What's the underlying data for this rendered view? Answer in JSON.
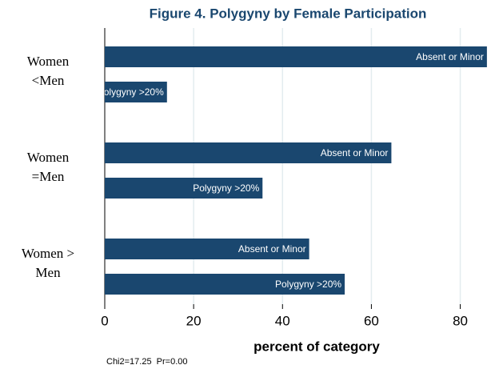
{
  "chart_data": {
    "type": "bar",
    "orientation": "horizontal",
    "title": "Figure 4. Polygyny by Female Participation",
    "categories": [
      "Women <Men",
      "Women =Men",
      "Women > Men"
    ],
    "series": [
      {
        "name": "Absent or Minor",
        "color": "#1a476f",
        "values": [
          86,
          64.5,
          46
        ]
      },
      {
        "name": "Polygyny >20%",
        "color": "#1a476f",
        "values": [
          14,
          35.5,
          54
        ]
      }
    ],
    "xlabel": "percent of category",
    "xlim": [
      0,
      88
    ],
    "xticks": [
      0,
      20,
      40,
      60,
      80
    ],
    "grid": true,
    "note": "Chi2=17.25  Pr=0.00"
  }
}
